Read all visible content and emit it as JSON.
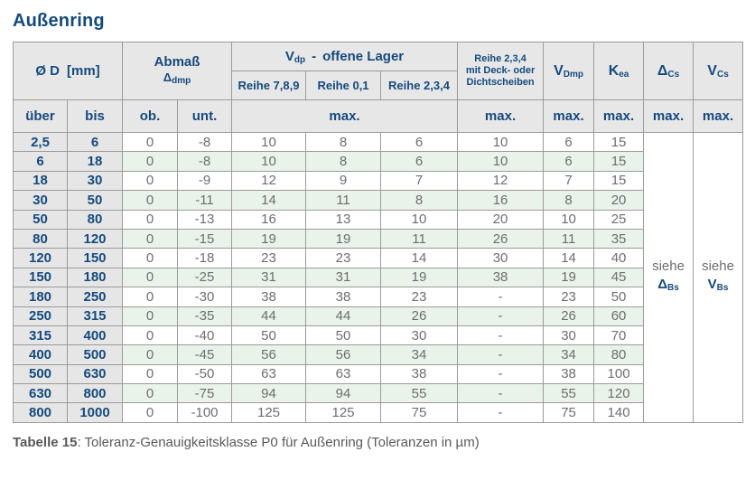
{
  "title": "Außenring",
  "caption": {
    "label": "Tabelle 15",
    "text": ": Toleranz-Genauigkeitsklasse P0 für Außenring (Toleranzen in µm)"
  },
  "colors": {
    "navy": "#154a7d",
    "header_bg": "#e7e7e7",
    "range_bg": "#e6e6e6",
    "alt_row_green": "#e9f3ea",
    "border": "#9b9b9b",
    "value_text": "#6e6e6e"
  },
  "table": {
    "header": {
      "d_label": "Ø D",
      "d_unit": "[mm]",
      "abmass_label": "Abmaß",
      "abmass_sym": "Δ",
      "abmass_sub": "dmp",
      "vdp_sym": "V",
      "vdp_sub": "dp",
      "vdp_rest": "offene Lager",
      "vdp_dash": "-",
      "reihe_789": "Reihe 7,8,9",
      "reihe_01": "Reihe 0,1",
      "reihe_234": "Reihe 2,3,4",
      "deck_line1": "Reihe 2,3,4",
      "deck_line2": "mit Deck- oder",
      "deck_line3": "Dichtscheiben",
      "vdmp_sym": "V",
      "vdmp_sub": "Dmp",
      "kea_sym": "K",
      "kea_sub": "ea",
      "dcs_sym": "Δ",
      "dcs_sub": "Cs",
      "vcs_sym": "V",
      "vcs_sub": "Cs",
      "ueber": "über",
      "bis": "bis",
      "ob": "ob.",
      "unt": "unt.",
      "max": "max."
    },
    "see": {
      "dcs": {
        "word": "siehe",
        "sym": "Δ",
        "sub": "Bs"
      },
      "vcs": {
        "word": "siehe",
        "sym": "V",
        "sub": "Bs"
      }
    },
    "rows": [
      [
        "2,5",
        "6",
        "0",
        "-8",
        "10",
        "8",
        "6",
        "10",
        "6",
        "15"
      ],
      [
        "6",
        "18",
        "0",
        "-8",
        "10",
        "8",
        "6",
        "10",
        "6",
        "15"
      ],
      [
        "18",
        "30",
        "0",
        "-9",
        "12",
        "9",
        "7",
        "12",
        "7",
        "15"
      ],
      [
        "30",
        "50",
        "0",
        "-11",
        "14",
        "11",
        "8",
        "16",
        "8",
        "20"
      ],
      [
        "50",
        "80",
        "0",
        "-13",
        "16",
        "13",
        "10",
        "20",
        "10",
        "25"
      ],
      [
        "80",
        "120",
        "0",
        "-15",
        "19",
        "19",
        "11",
        "26",
        "11",
        "35"
      ],
      [
        "120",
        "150",
        "0",
        "-18",
        "23",
        "23",
        "14",
        "30",
        "14",
        "40"
      ],
      [
        "150",
        "180",
        "0",
        "-25",
        "31",
        "31",
        "19",
        "38",
        "19",
        "45"
      ],
      [
        "180",
        "250",
        "0",
        "-30",
        "38",
        "38",
        "23",
        "-",
        "23",
        "50"
      ],
      [
        "250",
        "315",
        "0",
        "-35",
        "44",
        "44",
        "26",
        "-",
        "26",
        "60"
      ],
      [
        "315",
        "400",
        "0",
        "-40",
        "50",
        "50",
        "30",
        "-",
        "30",
        "70"
      ],
      [
        "400",
        "500",
        "0",
        "-45",
        "56",
        "56",
        "34",
        "-",
        "34",
        "80"
      ],
      [
        "500",
        "630",
        "0",
        "-50",
        "63",
        "63",
        "38",
        "-",
        "38",
        "100"
      ],
      [
        "630",
        "800",
        "0",
        "-75",
        "94",
        "94",
        "55",
        "-",
        "55",
        "120"
      ],
      [
        "800",
        "1000",
        "0",
        "-100",
        "125",
        "125",
        "75",
        "-",
        "75",
        "140"
      ]
    ]
  }
}
